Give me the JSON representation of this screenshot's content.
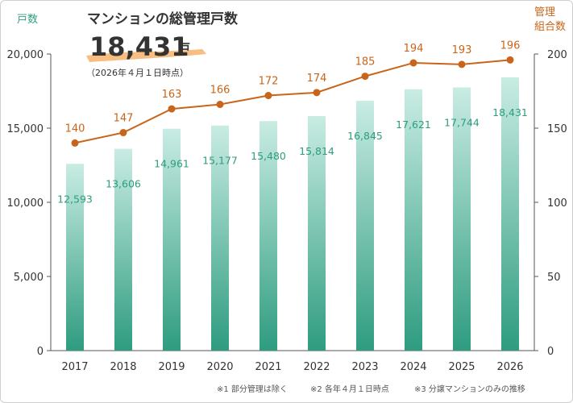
{
  "colors": {
    "bar_top": "#c9ece3",
    "bar_bottom": "#2e9c7f",
    "bar_label": "#2e9c7f",
    "line": "#c8651b",
    "axis_left_unit": "#2e9c7f",
    "axis_right_unit": "#c8651b",
    "highlight": "#f6b26b",
    "text": "#333333",
    "grid": "#dddddd"
  },
  "headline": {
    "title": "マンションの総管理戸数",
    "total_value": "18,431",
    "total_unit": "戸",
    "as_of": "（2026年４月１日時点）"
  },
  "footnotes": [
    "※1 部分管理は除く",
    "※2 各年４月１日時点",
    "※3 分譲マンションのみの推移"
  ],
  "chart_data": {
    "type": "bar",
    "categories": [
      "2017",
      "2018",
      "2019",
      "2020",
      "2021",
      "2022",
      "2023",
      "2024",
      "2025",
      "2026"
    ],
    "series": [
      {
        "type": "bar",
        "axis": "left",
        "values": [
          12593,
          13606,
          14961,
          15177,
          15480,
          15814,
          16845,
          17621,
          17744,
          18431
        ],
        "labels": [
          "12,593",
          "13,606",
          "14,961",
          "15,177",
          "15,480",
          "15,814",
          "16,845",
          "17,621",
          "17,744",
          "18,431"
        ]
      },
      {
        "type": "line",
        "axis": "right",
        "values": [
          140,
          147,
          163,
          166,
          172,
          174,
          185,
          194,
          193,
          196
        ],
        "labels": [
          "140",
          "147",
          "163",
          "166",
          "172",
          "174",
          "185",
          "194",
          "193",
          "196"
        ]
      }
    ],
    "y_left": {
      "label": "戸数",
      "ylim": [
        0,
        20000
      ],
      "ticks": [
        0,
        5000,
        10000,
        15000,
        20000
      ],
      "tick_labels": [
        "0",
        "5,000",
        "10,000",
        "15,000",
        "20,000"
      ]
    },
    "y_right": {
      "label_lines": [
        "管理",
        "組合数"
      ],
      "ylim": [
        0,
        200
      ],
      "ticks": [
        0,
        50,
        100,
        150,
        200
      ],
      "tick_labels": [
        "0",
        "50",
        "100",
        "150",
        "200"
      ]
    },
    "grid": false,
    "legend": "none"
  }
}
